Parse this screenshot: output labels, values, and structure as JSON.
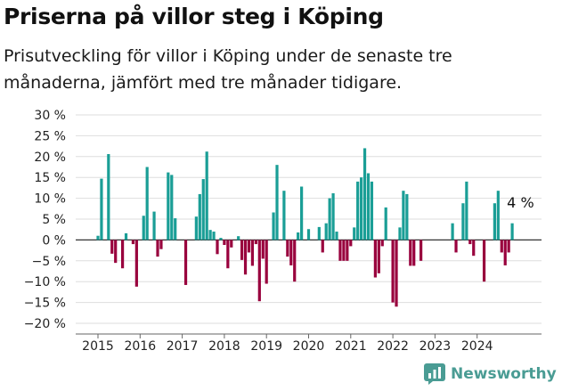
{
  "header": {
    "title": "Priserna på villor steg i Köping",
    "subtitle": "Prisutveckling för villor i Köping under de senaste tre månaderna, jämfört med tre månader tidigare."
  },
  "brand": {
    "name": "Newsworthy",
    "icon": "newsworthy-logo-icon"
  },
  "colors": {
    "positive": "#1a9e96",
    "negative": "#99003d",
    "grid": "#dedede",
    "axis": "#333333",
    "brand": "#4a9c94"
  },
  "chart_data": {
    "type": "bar",
    "title": "Priserna på villor steg i Köping",
    "xlabel": "",
    "ylabel": "",
    "ylim": [
      -20,
      30
    ],
    "yticks": [
      30,
      25,
      20,
      15,
      10,
      5,
      0,
      -5,
      -10,
      -15,
      -20
    ],
    "ytick_labels": [
      "30 %",
      "25 %",
      "20 %",
      "15 %",
      "10 %",
      "5 %",
      "0 %",
      "−5 %",
      "−10 %",
      "−15 %",
      "−20 %"
    ],
    "x_start": 2015.0,
    "step": 0.08333,
    "xticks": [
      2015,
      2016,
      2017,
      2018,
      2019,
      2020,
      2021,
      2022,
      2023,
      2024
    ],
    "xtick_labels": [
      "2015",
      "2016",
      "2017",
      "2018",
      "2019",
      "2020",
      "2021",
      "2022",
      "2023",
      "2024"
    ],
    "values": [
      1,
      14.7,
      0,
      20.6,
      -3.3,
      -5.5,
      0,
      -6.8,
      1.6,
      0,
      -1,
      -11.2,
      0,
      5.8,
      17.5,
      0,
      6.8,
      -4,
      -2.2,
      0,
      16.2,
      15.6,
      5.2,
      0,
      0,
      -10.8,
      0,
      0,
      5.6,
      11,
      14.6,
      21.2,
      2.4,
      2,
      -3.4,
      0.5,
      -1.2,
      -6.8,
      -1.8,
      0,
      0.9,
      -4.8,
      -8.3,
      -3,
      -6.2,
      -1,
      -14.7,
      -4.5,
      -10.5,
      0,
      6.6,
      18,
      0,
      11.8,
      -4,
      -6.1,
      -10,
      1.8,
      12.8,
      0,
      2.6,
      0,
      0,
      3.1,
      -3,
      4,
      10,
      11.2,
      2,
      -5,
      -5,
      -5,
      -1.5,
      3,
      14,
      15,
      22,
      16,
      14,
      -9,
      -8,
      -1.5,
      7.8,
      0,
      -15,
      -16,
      3,
      11.8,
      11,
      -6.2,
      -6.2,
      0,
      -5,
      0,
      0,
      0,
      0,
      0,
      0,
      0,
      0,
      4,
      -3,
      0,
      8.8,
      14,
      -1,
      -3.8,
      0,
      0,
      -10,
      0,
      0,
      8.8,
      11.8,
      -3,
      -6.1,
      -3,
      4,
      0
    ],
    "annotation": {
      "label": "4 %",
      "x": 2024.75,
      "y": 4
    }
  }
}
